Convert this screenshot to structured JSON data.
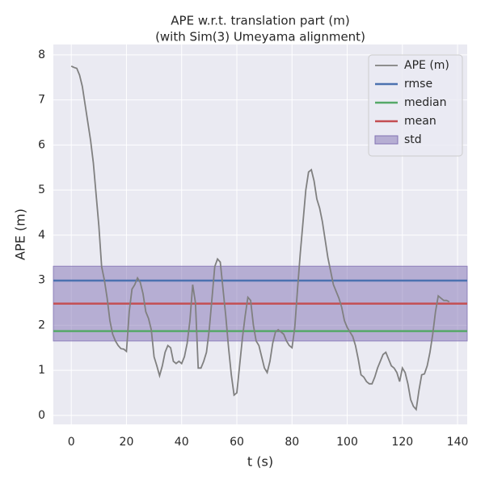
{
  "chart_data": {
    "type": "line",
    "title": "APE w.r.t. translation part (m)",
    "subtitle": "(with Sim(3) Umeyama alignment)",
    "xlabel": "t (s)",
    "ylabel": "APE (m)",
    "xlim": [
      -6.5,
      143.5
    ],
    "ylim": [
      -0.2,
      8.23
    ],
    "xticks": [
      0,
      20,
      40,
      60,
      80,
      100,
      120,
      140
    ],
    "yticks": [
      0,
      1,
      2,
      3,
      4,
      5,
      6,
      7,
      8
    ],
    "grid": true,
    "legend": "upper right",
    "x": [
      0,
      1,
      2,
      3,
      4,
      5,
      6,
      7,
      8,
      9,
      10,
      11,
      12,
      13,
      14,
      15,
      16,
      17,
      18,
      19,
      20,
      21,
      22,
      23,
      24,
      25,
      26,
      27,
      28,
      29,
      30,
      31,
      32,
      33,
      34,
      35,
      36,
      37,
      38,
      39,
      40,
      41,
      42,
      43,
      44,
      45,
      46,
      47,
      48,
      49,
      50,
      51,
      52,
      53,
      54,
      55,
      56,
      57,
      58,
      59,
      60,
      61,
      62,
      63,
      64,
      65,
      66,
      67,
      68,
      69,
      70,
      71,
      72,
      73,
      74,
      75,
      76,
      77,
      78,
      79,
      80,
      81,
      82,
      83,
      84,
      85,
      86,
      87,
      88,
      89,
      90,
      91,
      92,
      93,
      94,
      95,
      96,
      97,
      98,
      99,
      100,
      101,
      102,
      103,
      104,
      105,
      106,
      107,
      108,
      109,
      110,
      111,
      112,
      113,
      114,
      115,
      116,
      117,
      118,
      119,
      120,
      121,
      122,
      123,
      124,
      125,
      126,
      127,
      128,
      129,
      130,
      131,
      132,
      133,
      134,
      135,
      136,
      137
    ],
    "series": [
      {
        "name": "APE (m)",
        "color": "#808080",
        "values": [
          7.75,
          7.72,
          7.7,
          7.55,
          7.3,
          6.9,
          6.5,
          6.1,
          5.6,
          4.9,
          4.2,
          3.3,
          3.0,
          2.6,
          2.1,
          1.8,
          1.65,
          1.55,
          1.48,
          1.47,
          1.42,
          2.3,
          2.8,
          2.9,
          3.05,
          2.95,
          2.7,
          2.3,
          2.15,
          1.9,
          1.3,
          1.1,
          0.88,
          1.1,
          1.4,
          1.55,
          1.5,
          1.2,
          1.15,
          1.2,
          1.15,
          1.3,
          1.6,
          2.1,
          2.9,
          2.5,
          1.05,
          1.05,
          1.2,
          1.4,
          1.9,
          2.6,
          3.3,
          3.47,
          3.4,
          2.8,
          2.2,
          1.5,
          0.9,
          0.45,
          0.5,
          1.1,
          1.7,
          2.2,
          2.62,
          2.55,
          2.0,
          1.65,
          1.55,
          1.3,
          1.05,
          0.95,
          1.2,
          1.6,
          1.85,
          1.9,
          1.85,
          1.8,
          1.65,
          1.55,
          1.5,
          1.95,
          2.8,
          3.6,
          4.3,
          5.0,
          5.4,
          5.45,
          5.2,
          4.8,
          4.6,
          4.3,
          3.9,
          3.5,
          3.2,
          2.9,
          2.75,
          2.6,
          2.4,
          2.1,
          1.95,
          1.85,
          1.75,
          1.55,
          1.25,
          0.9,
          0.85,
          0.75,
          0.7,
          0.7,
          0.85,
          1.05,
          1.2,
          1.35,
          1.4,
          1.25,
          1.1,
          1.05,
          0.95,
          0.75,
          1.05,
          0.95,
          0.7,
          0.35,
          0.2,
          0.13,
          0.55,
          0.9,
          0.92,
          1.1,
          1.4,
          1.8,
          2.3,
          2.65,
          2.6,
          2.55,
          2.55,
          2.52
        ]
      }
    ],
    "reference_lines": [
      {
        "name": "rmse",
        "color": "#4c72b0",
        "value": 2.99
      },
      {
        "name": "median",
        "color": "#55a868",
        "value": 1.87
      },
      {
        "name": "mean",
        "color": "#c44e52",
        "value": 2.48
      }
    ],
    "bands": [
      {
        "name": "std",
        "color": "#8172b3",
        "range": [
          1.65,
          3.31
        ]
      }
    ]
  }
}
